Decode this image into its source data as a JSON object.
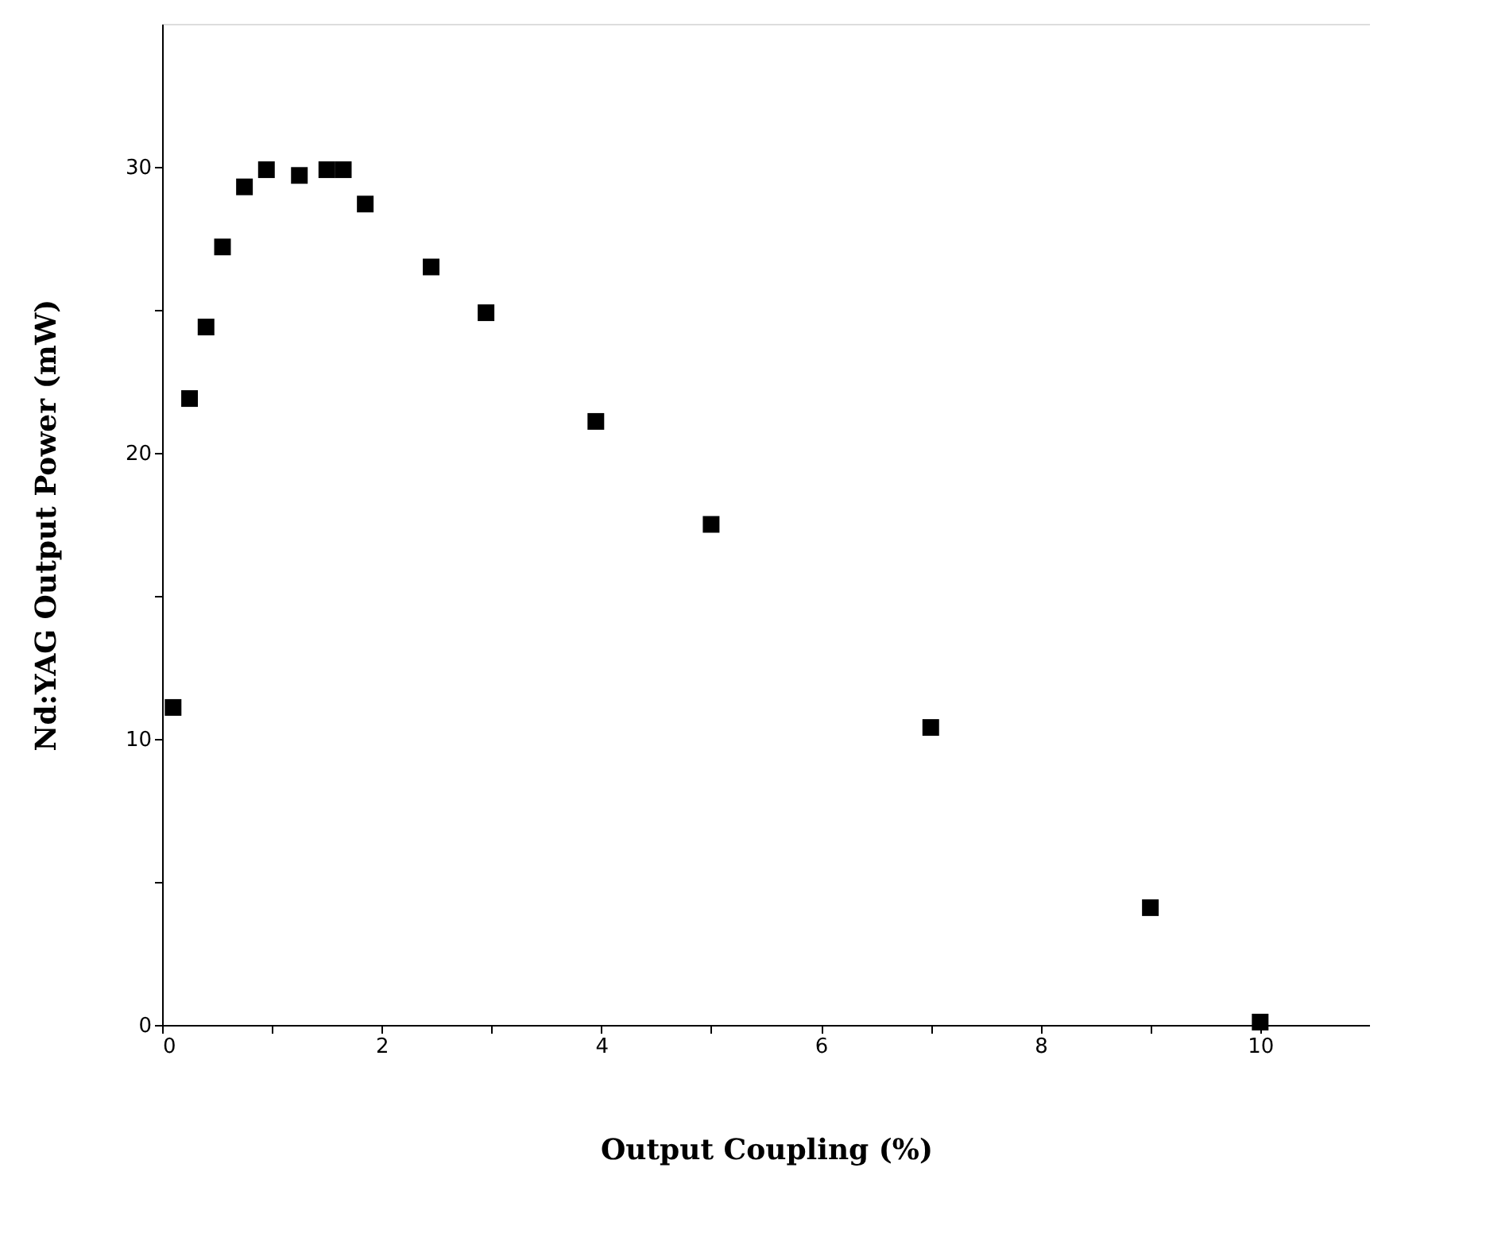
{
  "chart_data": {
    "type": "scatter",
    "xlabel": "Output Coupling (%)",
    "ylabel": "Nd:YAG Output Power (mW)",
    "x": [
      0.1,
      0.25,
      0.4,
      0.55,
      0.75,
      0.95,
      1.25,
      1.5,
      1.65,
      1.85,
      2.45,
      2.95,
      3.95,
      5,
      7,
      9,
      10
    ],
    "series": [
      {
        "color": "#000000",
        "values": [
          11.1,
          21.9,
          24.4,
          27.2,
          29.3,
          29.9,
          29.7,
          29.9,
          29.9,
          28.7,
          26.5,
          24.9,
          21.1,
          17.5,
          10.4,
          4.1,
          0.1
        ]
      }
    ],
    "xlim": [
      0,
      11
    ],
    "ylim": [
      0,
      35
    ],
    "xticks": [
      0,
      {
        "value": 1,
        "label": null
      },
      2,
      {
        "value": 3,
        "label": null
      },
      4,
      {
        "value": 5,
        "label": null
      },
      6,
      {
        "value": 7,
        "label": null
      },
      8,
      {
        "value": 9,
        "label": null
      },
      10
    ],
    "yticks": [
      0,
      {
        "value": 5,
        "label": null
      },
      10,
      {
        "value": 15,
        "label": null
      },
      20,
      {
        "value": 25,
        "label": null
      },
      30
    ],
    "marker": "square",
    "grid": false,
    "legend": false
  }
}
